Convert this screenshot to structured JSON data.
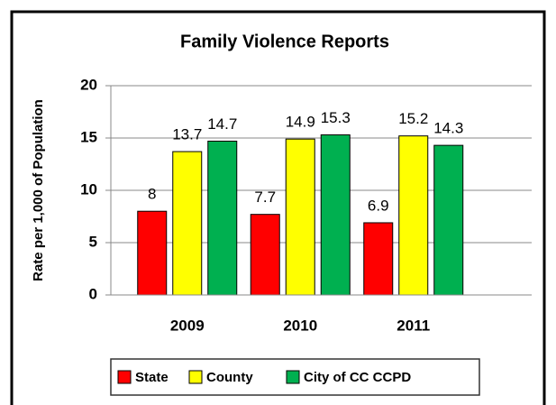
{
  "chart_data": {
    "type": "bar",
    "title": "Family Violence Reports",
    "y_label": "Rate per 1,000 of Population",
    "categories": [
      "2009",
      "2010",
      "2011"
    ],
    "series": [
      {
        "name": "State",
        "color": "#ff0000",
        "values": [
          8,
          7.7,
          6.9
        ]
      },
      {
        "name": "County",
        "color": "#ffff00",
        "values": [
          13.7,
          14.9,
          15.2
        ]
      },
      {
        "name": "City of CC CCPD",
        "color": "#00b050",
        "values": [
          14.7,
          15.3,
          14.3
        ]
      }
    ],
    "ylim": [
      0,
      20
    ],
    "yticks": [
      0,
      5,
      10,
      15,
      20
    ],
    "grid": true,
    "legend": "bottom"
  }
}
